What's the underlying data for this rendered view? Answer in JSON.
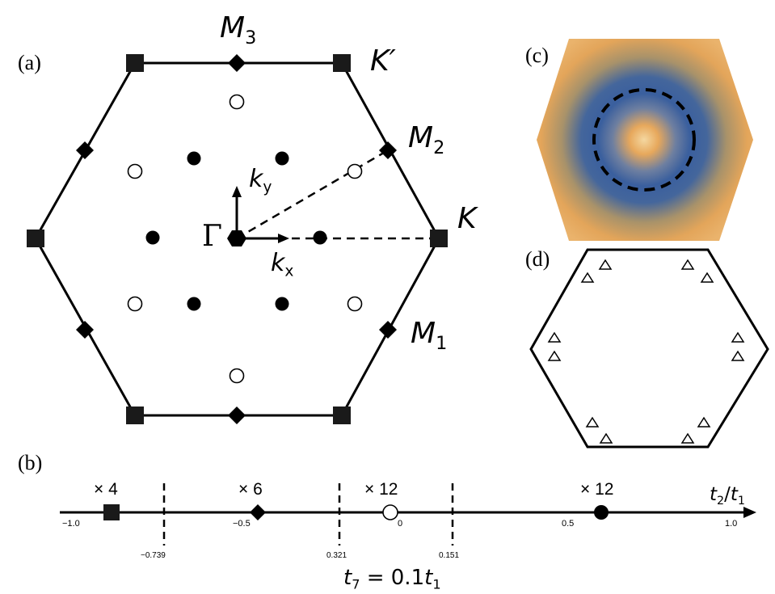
{
  "panels": {
    "a": "(a)",
    "b": "(b)",
    "c": "(c)",
    "d": "(d)"
  },
  "bz_labels": {
    "M3": {
      "base": "M",
      "sub": "3"
    },
    "M2": {
      "base": "M",
      "sub": "2"
    },
    "M1": {
      "base": "M",
      "sub": "1"
    },
    "Kp": "K′",
    "K": "K",
    "Gamma": "Γ",
    "kx": {
      "base": "k",
      "sub": "x"
    },
    "ky": {
      "base": "k",
      "sub": "y"
    }
  },
  "axis": {
    "label_num": {
      "base": "t",
      "sub": "2"
    },
    "label_den": {
      "base": "t",
      "sub": "1"
    },
    "ticks": [
      "−1.0",
      "−0.5",
      "0",
      "0.5",
      "1.0"
    ],
    "boundaries": [
      "−0.739",
      "0.321",
      "0.151"
    ],
    "multiplicities": [
      "× 4",
      "× 6",
      "× 12",
      "× 12"
    ]
  },
  "caption": {
    "lhs": "t",
    "lhs_sub": "7",
    "rhs": " = 0.1",
    "rhs_t": "t",
    "rhs_sub": "1"
  },
  "colors": {
    "ink": "#000000",
    "heat_outer": "#e8a85a",
    "heat_ring": "#3c5f9c",
    "heat_center": "#f2c98c"
  }
}
